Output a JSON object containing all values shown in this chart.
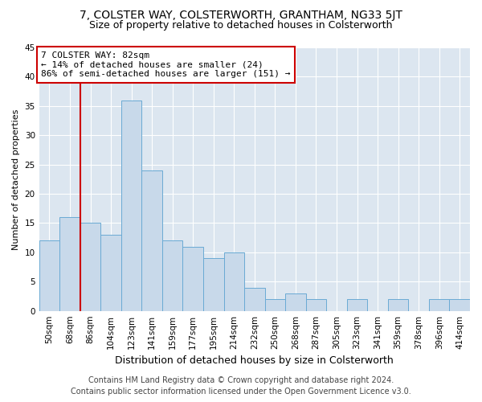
{
  "title": "7, COLSTER WAY, COLSTERWORTH, GRANTHAM, NG33 5JT",
  "subtitle": "Size of property relative to detached houses in Colsterworth",
  "xlabel": "Distribution of detached houses by size in Colsterworth",
  "ylabel": "Number of detached properties",
  "categories": [
    "50sqm",
    "68sqm",
    "86sqm",
    "104sqm",
    "123sqm",
    "141sqm",
    "159sqm",
    "177sqm",
    "195sqm",
    "214sqm",
    "232sqm",
    "250sqm",
    "268sqm",
    "287sqm",
    "305sqm",
    "323sqm",
    "341sqm",
    "359sqm",
    "378sqm",
    "396sqm",
    "414sqm"
  ],
  "values": [
    12,
    16,
    15,
    13,
    36,
    24,
    12,
    11,
    9,
    10,
    4,
    2,
    3,
    2,
    0,
    2,
    0,
    2,
    0,
    2,
    2
  ],
  "bar_color": "#c8d9ea",
  "bar_edge_color": "#6aaad4",
  "annotation_line1": "7 COLSTER WAY: 82sqm",
  "annotation_line2": "← 14% of detached houses are smaller (24)",
  "annotation_line3": "86% of semi-detached houses are larger (151) →",
  "annotation_box_color": "white",
  "annotation_border_color": "#cc0000",
  "vline_color": "#cc0000",
  "vline_x_index": 1.5,
  "ylim": [
    0,
    45
  ],
  "yticks": [
    0,
    5,
    10,
    15,
    20,
    25,
    30,
    35,
    40,
    45
  ],
  "footer_line1": "Contains HM Land Registry data © Crown copyright and database right 2024.",
  "footer_line2": "Contains public sector information licensed under the Open Government Licence v3.0.",
  "fig_bg_color": "#ffffff",
  "plot_bg_color": "#dce6f0",
  "grid_color": "#ffffff",
  "title_fontsize": 10,
  "subtitle_fontsize": 9,
  "xlabel_fontsize": 9,
  "ylabel_fontsize": 8,
  "tick_fontsize": 7.5,
  "annot_fontsize": 8,
  "footer_fontsize": 7
}
